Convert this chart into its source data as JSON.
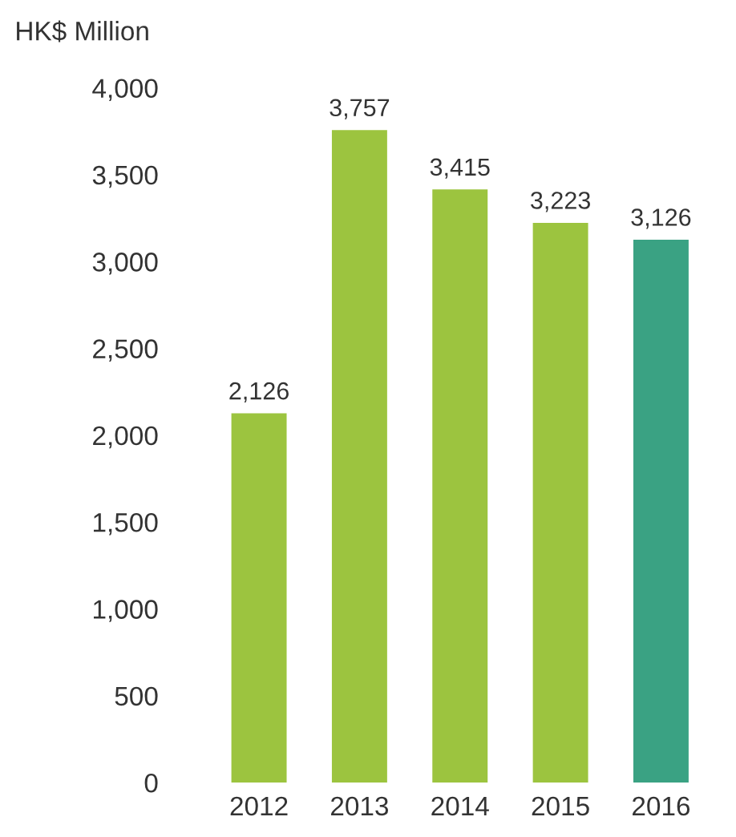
{
  "chart_data": {
    "type": "bar",
    "ylabel": "HK$ Million",
    "categories": [
      "2012",
      "2013",
      "2014",
      "2015",
      "2016"
    ],
    "values": [
      2126,
      3757,
      3415,
      3223,
      3126
    ],
    "colors": [
      "#9cc43f",
      "#9cc43f",
      "#9cc43f",
      "#9cc43f",
      "#3aa283"
    ],
    "value_labels": [
      "2,126",
      "3,757",
      "3,415",
      "3,223",
      "3,126"
    ],
    "ylim": [
      0,
      4000
    ],
    "yticks": [
      0,
      {
        "value": 500,
        "label": "500"
      },
      {
        "value": 1000,
        "label": "1,000"
      },
      {
        "value": 1500,
        "label": "1,500"
      },
      {
        "value": 2000,
        "label": "2,000"
      },
      {
        "value": 2500,
        "label": "2,500"
      },
      {
        "value": 3000,
        "label": "3,000"
      },
      {
        "value": 3500,
        "label": "3,500"
      },
      {
        "value": 4000,
        "label": "4,000"
      }
    ],
    "grid": false,
    "legend": false
  }
}
